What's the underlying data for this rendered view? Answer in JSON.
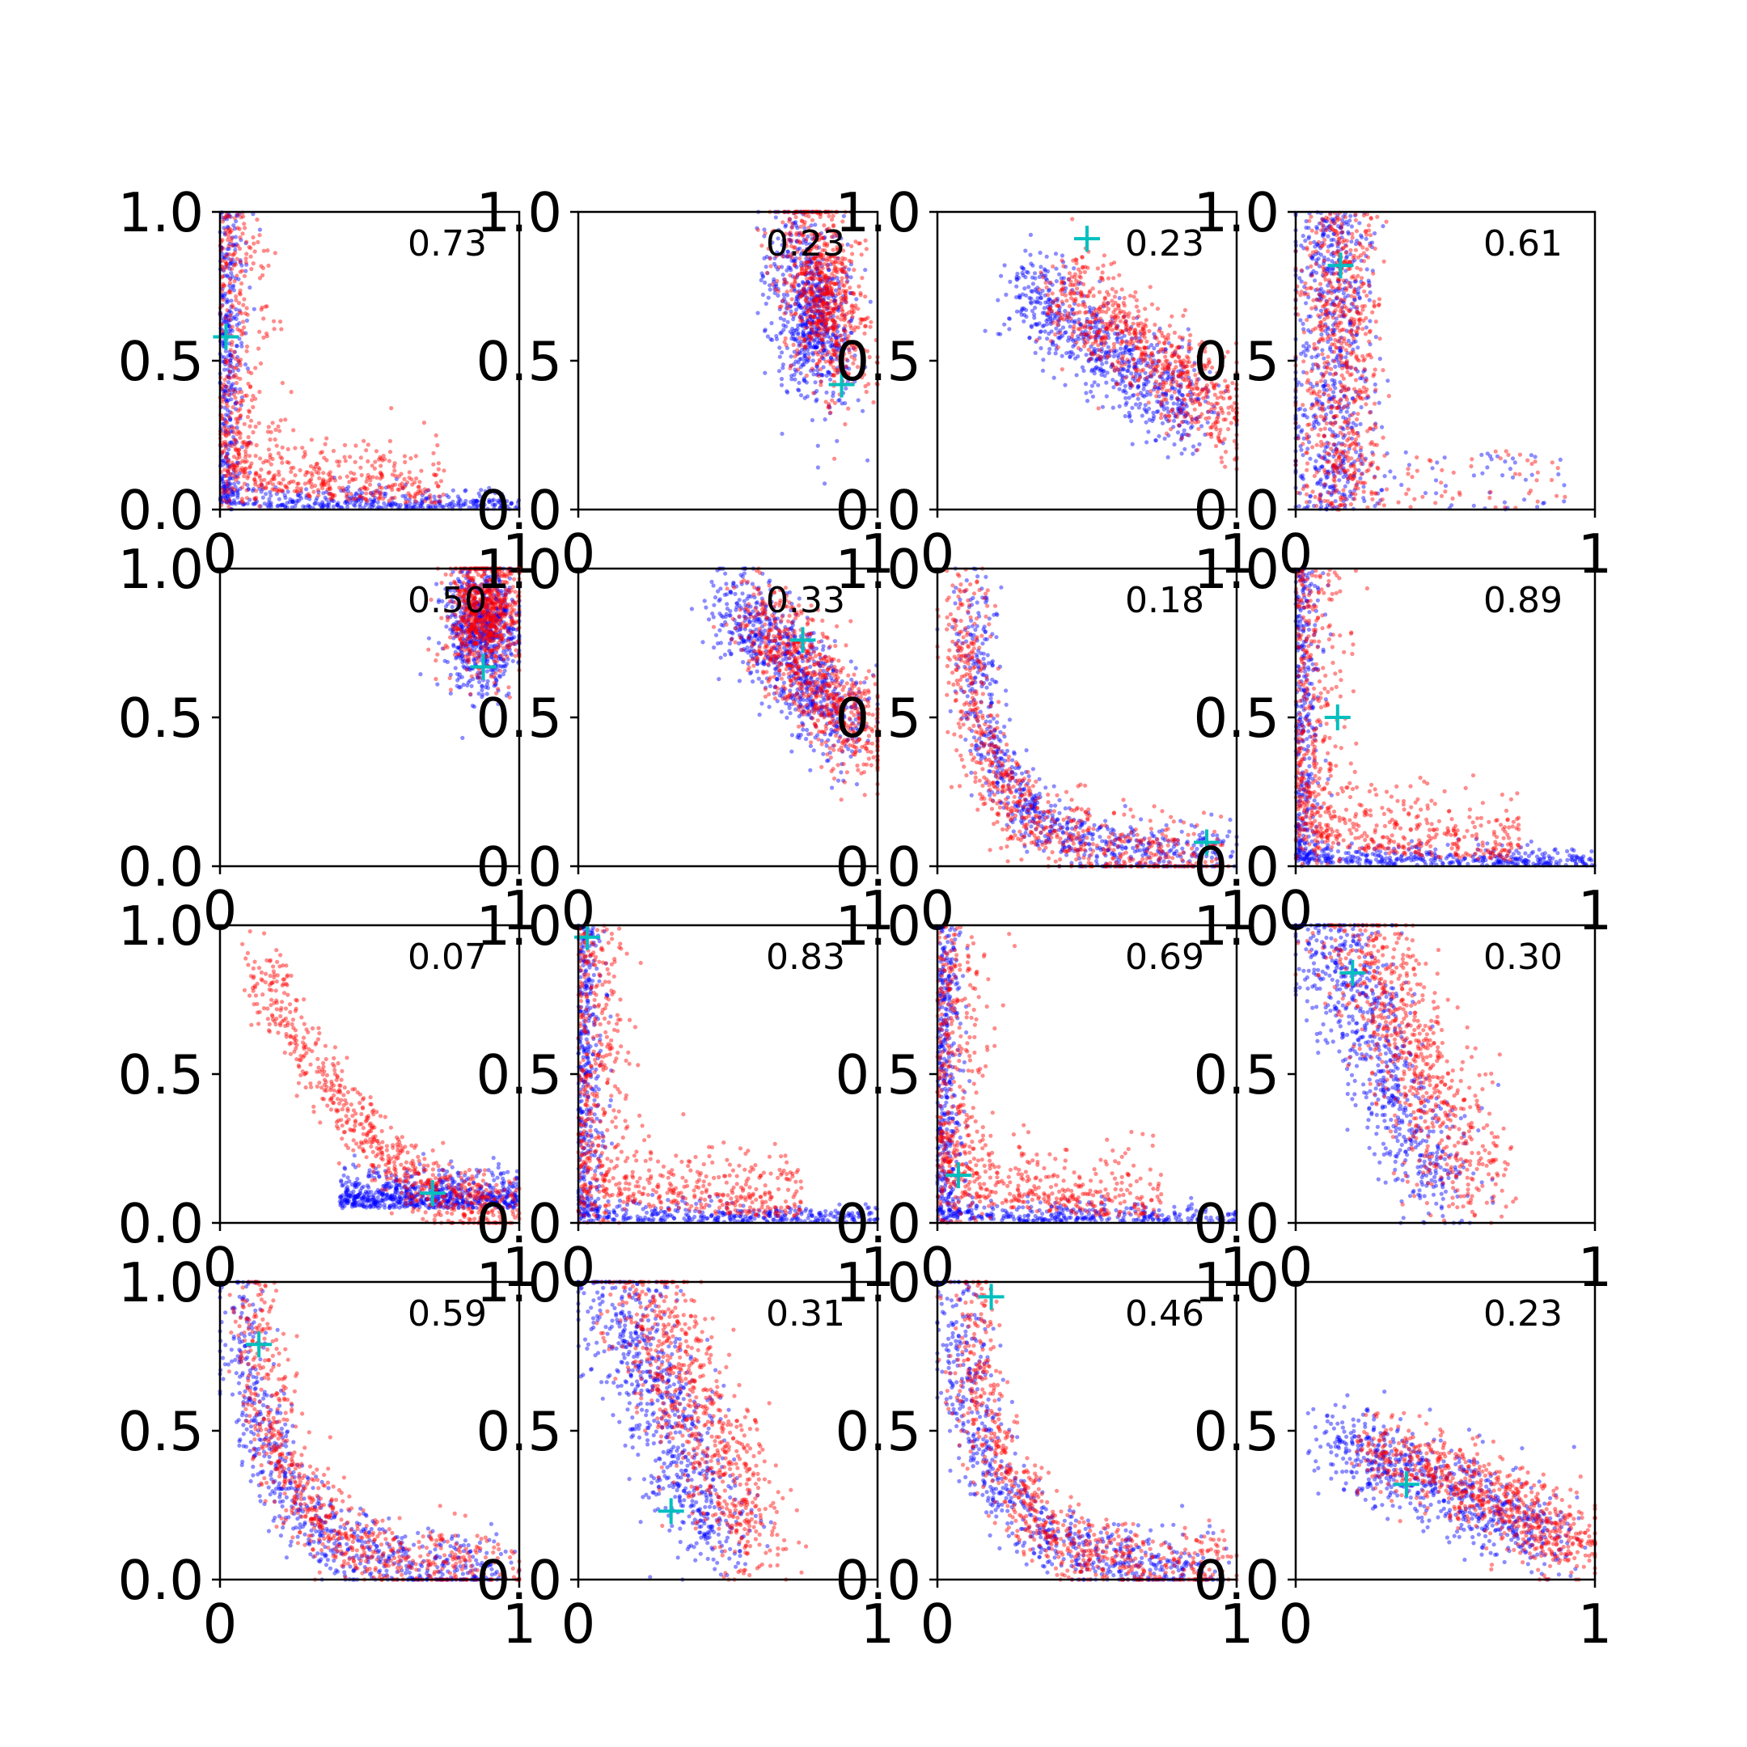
{
  "chart_data": {
    "type": "scatter",
    "layout": {
      "rows": 4,
      "cols": 4
    },
    "xlim": [
      0,
      1
    ],
    "ylim": [
      0,
      1
    ],
    "x_ticks": [
      "0",
      "1"
    ],
    "y_ticks": [
      "0.0",
      "0.5",
      "1.0"
    ],
    "colors": {
      "series_a": "#0000ff",
      "series_b": "#ff0000",
      "marker": "#00bfbf"
    },
    "panels": [
      {
        "label": "0.73",
        "marker": [
          0.02,
          0.58
        ],
        "pattern": "L-tight"
      },
      {
        "label": "0.23",
        "marker": [
          0.88,
          0.42
        ],
        "pattern": "cluster-top-right"
      },
      {
        "label": "0.23",
        "marker": [
          0.5,
          0.91
        ],
        "pattern": "diagonal-center"
      },
      {
        "label": "0.61",
        "marker": [
          0.15,
          0.82
        ],
        "pattern": "vertical-left"
      },
      {
        "label": "0.50",
        "marker": [
          0.88,
          0.67
        ],
        "pattern": "cluster-corner"
      },
      {
        "label": "0.33",
        "marker": [
          0.75,
          0.76
        ],
        "pattern": "cluster-upper-right"
      },
      {
        "label": "0.18",
        "marker": [
          0.9,
          0.08
        ],
        "pattern": "L-wide"
      },
      {
        "label": "0.89",
        "marker": [
          0.14,
          0.5
        ],
        "pattern": "L-tight"
      },
      {
        "label": "0.07",
        "marker": [
          0.71,
          0.1
        ],
        "pattern": "curve-mid"
      },
      {
        "label": "0.83",
        "marker": [
          0.03,
          0.96
        ],
        "pattern": "L-tight"
      },
      {
        "label": "0.69",
        "marker": [
          0.07,
          0.16
        ],
        "pattern": "L-tight"
      },
      {
        "label": "0.30",
        "marker": [
          0.19,
          0.84
        ],
        "pattern": "vertical-spread"
      },
      {
        "label": "0.59",
        "marker": [
          0.13,
          0.79
        ],
        "pattern": "L-mid"
      },
      {
        "label": "0.31",
        "marker": [
          0.31,
          0.23
        ],
        "pattern": "vertical-spread"
      },
      {
        "label": "0.46",
        "marker": [
          0.18,
          0.95
        ],
        "pattern": "L-mid"
      },
      {
        "label": "0.23",
        "marker": [
          0.37,
          0.32
        ],
        "pattern": "diagonal-low"
      }
    ]
  }
}
